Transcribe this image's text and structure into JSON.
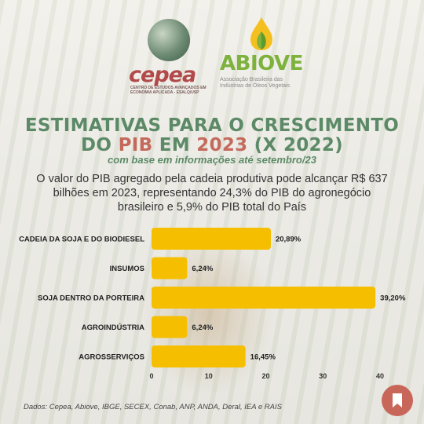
{
  "logos": {
    "cepea": {
      "name": "cepea",
      "subtitle": "CENTRO DE ESTUDOS AVANÇADOS EM ECONOMIA APLICADA - ESALQ/USP"
    },
    "abiove": {
      "name": "ABIOVE",
      "subtitle": "Associação Brasileira das Indústrias de Óleos Vegetais"
    }
  },
  "title": {
    "line1": "ESTIMATIVAS PARA O CRESCIMENTO",
    "line2_a": "DO ",
    "line2_pib": "PIB",
    "line2_b": " EM ",
    "line2_year": "2023",
    "line2_c": " (X 2022)",
    "subtitle": "com base em informações até setembro/23"
  },
  "description": "O valor do PIB agregado pela cadeia produtiva pode alcançar R$ 637 bilhões em 2023, representando 24,3% do PIB do agronegócio brasileiro e 5,9% do PIB total do País",
  "source": "Dados: Cepea, Abiove, IBGE, SECEX, Conab, ANP, ANDA, Deral, IEA e RAIS",
  "colors": {
    "bar": "#f5bf00",
    "title": "#5c8a66",
    "accent": "#c46a5c",
    "bookmark": "#c9665a"
  },
  "chart_data": {
    "type": "bar",
    "orientation": "horizontal",
    "categories": [
      "CADEIA DA SOJA E DO BIODIESEL",
      "INSUMOS",
      "SOJA DENTRO DA PORTEIRA",
      "AGROINDÚSTRIA",
      "AGROSSERVIÇOS"
    ],
    "values": [
      20.89,
      6.24,
      39.2,
      6.24,
      16.45
    ],
    "value_labels": [
      "20,89%",
      "6,24%",
      "39,20%",
      "6,24%",
      "16,45%"
    ],
    "xlim": [
      0,
      40
    ],
    "xticks": [
      "0",
      "10",
      "20",
      "30",
      "40"
    ],
    "grid": false
  }
}
